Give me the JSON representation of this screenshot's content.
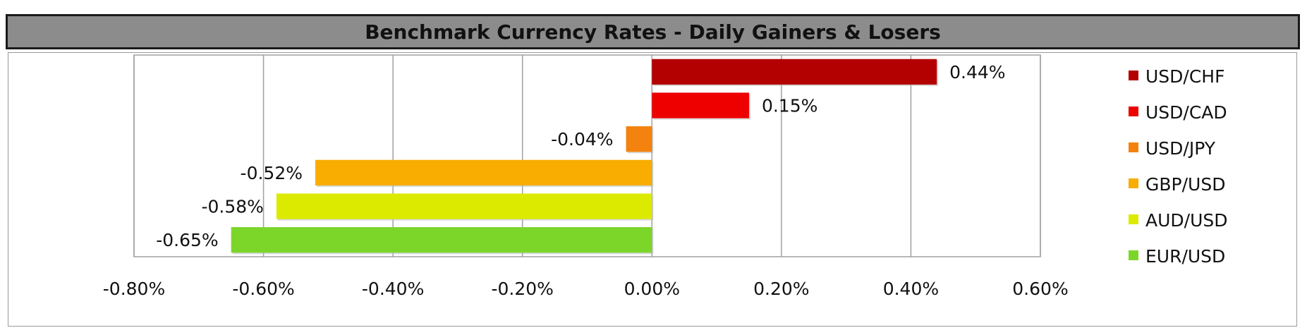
{
  "chart_data": {
    "type": "bar",
    "orientation": "horizontal",
    "title": "Benchmark Currency Rates - Daily Gainers & Losers",
    "categories": [
      "USD/CHF",
      "USD/CAD",
      "USD/JPY",
      "GBP/USD",
      "AUD/USD",
      "EUR/USD"
    ],
    "values": [
      0.44,
      0.15,
      -0.04,
      -0.52,
      -0.58,
      -0.65
    ],
    "value_labels": [
      "0.44%",
      "0.15%",
      "-0.04%",
      "-0.52%",
      "-0.58%",
      "-0.65%"
    ],
    "colors": [
      "#b30000",
      "#ee0000",
      "#f4820e",
      "#f8ad00",
      "#dcea00",
      "#7cd62a"
    ],
    "xlim": [
      -0.8,
      0.6
    ],
    "x_ticks": [
      -0.8,
      -0.6,
      -0.4,
      -0.2,
      0.0,
      0.2,
      0.4,
      0.6
    ],
    "x_tick_labels": [
      "-0.80%",
      "-0.60%",
      "-0.40%",
      "-0.20%",
      "0.00%",
      "0.20%",
      "0.40%",
      "0.60%"
    ],
    "grid": "vertical",
    "legend": "right",
    "xlabel": "",
    "ylabel": ""
  }
}
